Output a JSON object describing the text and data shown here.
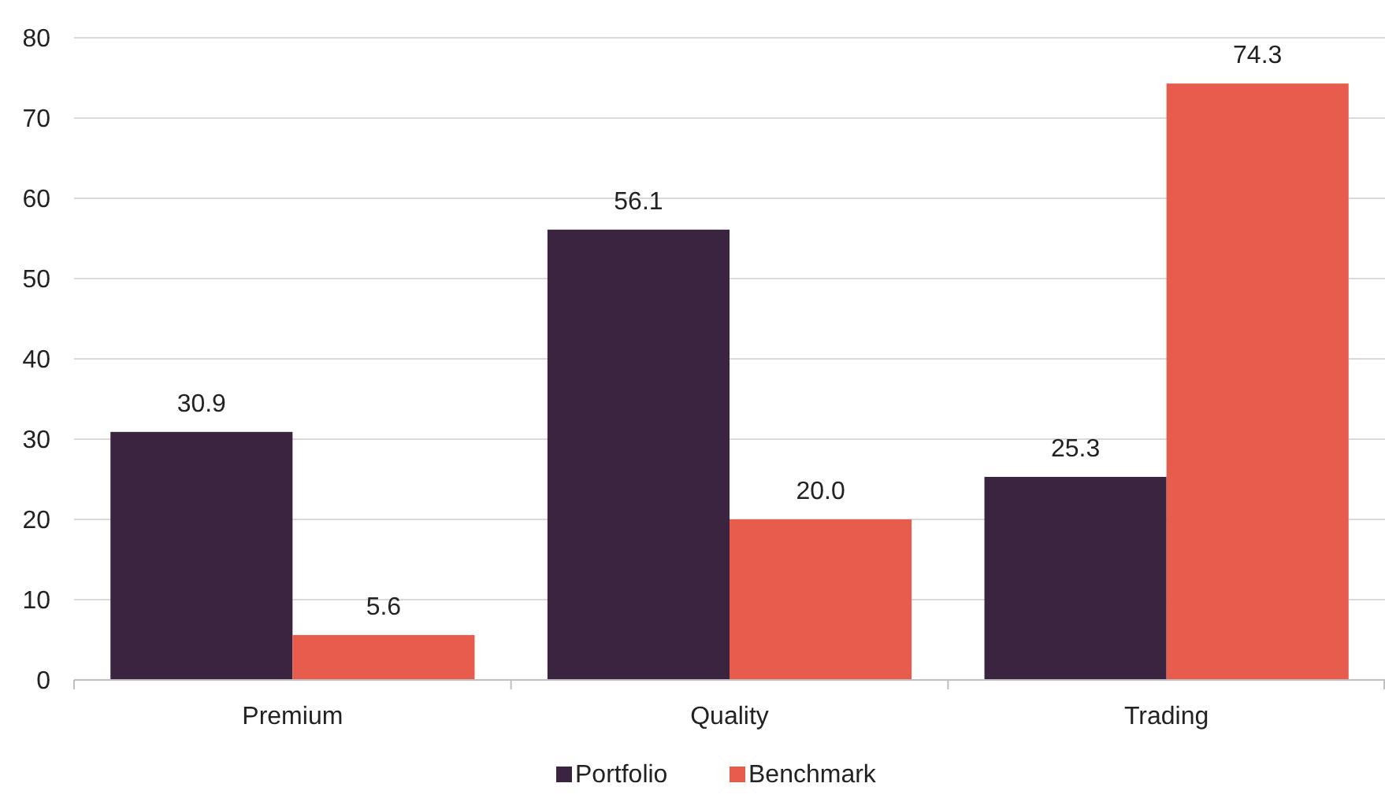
{
  "chart_data": {
    "type": "bar",
    "categories": [
      "Premium",
      "Quality",
      "Trading"
    ],
    "series": [
      {
        "name": "Portfolio",
        "color": "#3b2440",
        "values": [
          30.9,
          56.1,
          25.3
        ],
        "value_labels": [
          "30.9",
          "56.1",
          "25.3"
        ]
      },
      {
        "name": "Benchmark",
        "color": "#e85c4d",
        "values": [
          5.6,
          20.0,
          74.3
        ],
        "value_labels": [
          "5.6",
          "20.0",
          "74.3"
        ]
      }
    ],
    "ylim": [
      0,
      80
    ],
    "yticks": [
      0,
      10,
      20,
      30,
      40,
      50,
      60,
      70,
      80
    ],
    "grid": "y",
    "legend": "bottom"
  }
}
